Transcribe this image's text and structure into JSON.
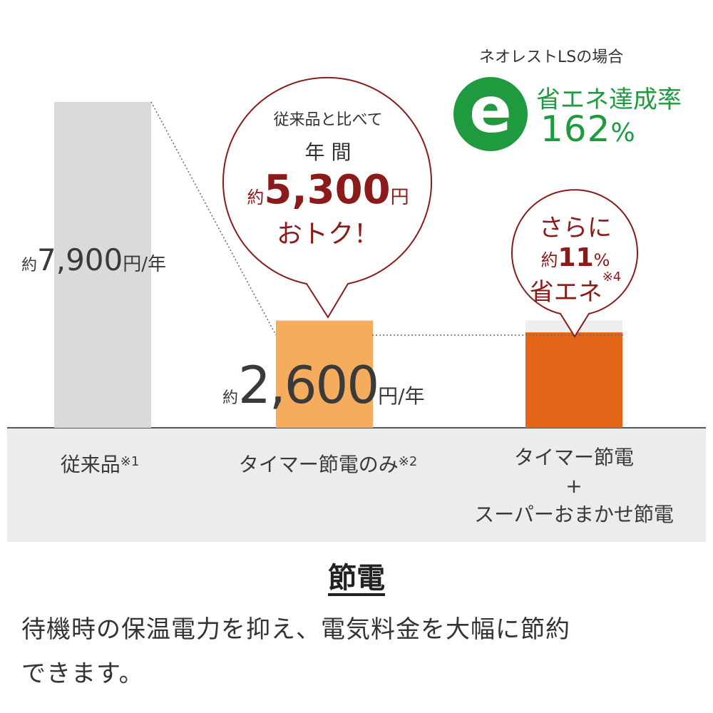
{
  "chart_data": {
    "type": "bar",
    "unit": "円/年",
    "categories": [
      {
        "label": "従来品",
        "note": "※1"
      },
      {
        "label": "タイマー節電のみ",
        "note": "※2"
      },
      {
        "label": "タイマー節電\n+\nスーパーおまかせ節電",
        "note": ""
      }
    ],
    "values": [
      7900,
      2600,
      2314
    ],
    "value_labels": [
      {
        "prefix": "約",
        "number": "7,900",
        "unit": "円/年"
      },
      {
        "prefix": "約",
        "number": "2,600",
        "unit": "円/年"
      }
    ],
    "colors": [
      "#d9dadc",
      "#f6ac5d",
      "#e36517"
    ],
    "reduction_fraction_top": "#eeeeee"
  },
  "bubble_main": {
    "line1": "従来品と比べて",
    "line2": "年 間",
    "prefix": "約",
    "amount": "5,300",
    "unit": "円",
    "line4": "おトク！"
  },
  "bubble_sub": {
    "line1": "さらに",
    "prefix": "約",
    "percent": "11",
    "percent_sign": "%",
    "line3": "省エネ",
    "note": "※4"
  },
  "eco": {
    "title": "ネオレストLSの場合",
    "icon_letter": "e",
    "label": "省エネ達成率",
    "percent": "162",
    "percent_sign": "%"
  },
  "section": {
    "title": "節電",
    "desc_line1": "待機時の保温電力を抑え、電気料金を大幅に節約",
    "desc_line2": "できます。"
  }
}
